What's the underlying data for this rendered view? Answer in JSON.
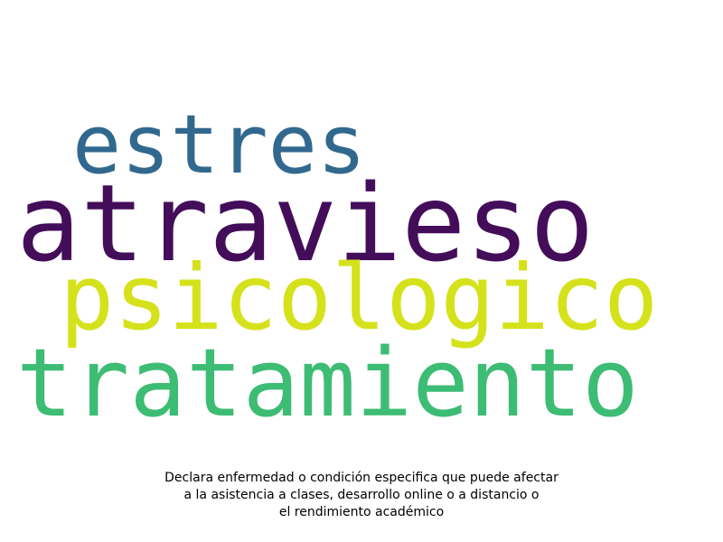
{
  "words": [
    {
      "text": "estres",
      "color": "#31688e"
    },
    {
      "text": "atravieso",
      "color": "#440d5a"
    },
    {
      "text": "psicologico",
      "color": "#d5e21b"
    },
    {
      "text": "tratamiento",
      "color": "#3dbc74"
    }
  ],
  "caption": {
    "line1": "Declara enfermedad o condición especifica que puede afectar",
    "line2": "a la asistencia a clases, desarrollo online o a distancio o",
    "line3": "el rendimiento académico"
  }
}
